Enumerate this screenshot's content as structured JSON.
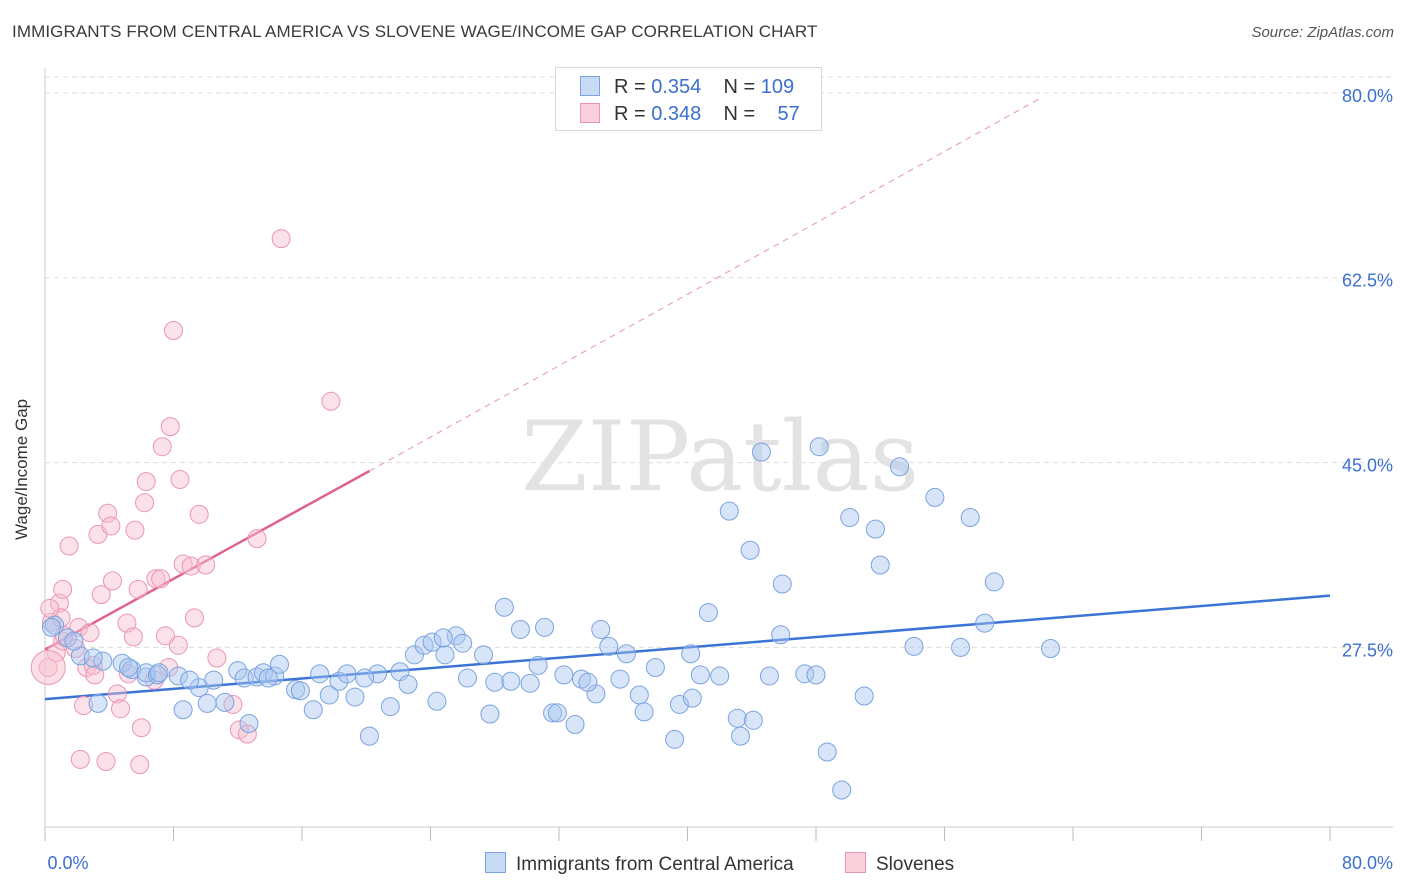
{
  "title": "IMMIGRANTS FROM CENTRAL AMERICA VS SLOVENE WAGE/INCOME GAP CORRELATION CHART",
  "source": "Source: ZipAtlas.com",
  "watermark": "ZIPatlas",
  "legend": {
    "rows": [
      {
        "r_label": "R =",
        "r": "0.354",
        "n_label": "N =",
        "n": "109",
        "color": "#a9c6ef"
      },
      {
        "r_label": "R =",
        "r": "0.348",
        "n_label": "N =",
        "n": "57",
        "color": "#f4b6c8"
      }
    ]
  },
  "bottom_legend": [
    "Immigrants from Central America",
    "Slovenes"
  ],
  "colors": {
    "blue": "#3b74d6",
    "pink": "#e0608f",
    "blue_fill": "#a9c6ef",
    "pink_fill": "#f7bfd0",
    "axis_label": "#3b6fd0"
  },
  "chart_data": {
    "type": "scatter",
    "ylabel": "Wage/Income Gap",
    "x_ticks": [
      "0.0%",
      "80.0%"
    ],
    "y_ticks": [
      "80.0%",
      "62.5%",
      "45.0%",
      "27.5%"
    ],
    "xlim": [
      0,
      80
    ],
    "ylim": [
      10.5,
      81.5
    ],
    "series": [
      {
        "name": "Immigrants from Central America",
        "color": "#3b74d6",
        "trend": {
          "x0": 0,
          "y0": 22.6,
          "x1": 80,
          "y1": 32.4
        },
        "points": [
          [
            0.6,
            29.6
          ],
          [
            1.4,
            28.4
          ],
          [
            2.2,
            26.7
          ],
          [
            3.3,
            22.2
          ],
          [
            3.6,
            26.2
          ],
          [
            4.8,
            26.0
          ],
          [
            5.4,
            25.4
          ],
          [
            6.3,
            24.7
          ],
          [
            6.3,
            25.1
          ],
          [
            7.0,
            24.9
          ],
          [
            7.1,
            25.1
          ],
          [
            8.3,
            24.8
          ],
          [
            8.6,
            21.6
          ],
          [
            9.6,
            23.7
          ],
          [
            10.1,
            22.2
          ],
          [
            10.5,
            24.4
          ],
          [
            11.2,
            22.3
          ],
          [
            12.0,
            25.3
          ],
          [
            12.4,
            24.6
          ],
          [
            12.7,
            20.3
          ],
          [
            13.2,
            24.7
          ],
          [
            13.6,
            25.1
          ],
          [
            14.3,
            24.8
          ],
          [
            14.6,
            25.9
          ],
          [
            15.6,
            23.5
          ],
          [
            15.9,
            23.4
          ],
          [
            16.7,
            21.6
          ],
          [
            17.1,
            25.0
          ],
          [
            17.7,
            23.0
          ],
          [
            18.3,
            24.3
          ],
          [
            18.8,
            25.0
          ],
          [
            19.3,
            22.8
          ],
          [
            20.2,
            19.1
          ],
          [
            20.7,
            25.0
          ],
          [
            21.5,
            21.9
          ],
          [
            22.1,
            25.2
          ],
          [
            22.6,
            24.0
          ],
          [
            23.0,
            26.8
          ],
          [
            23.6,
            27.7
          ],
          [
            24.1,
            28.0
          ],
          [
            24.4,
            22.4
          ],
          [
            24.9,
            26.8
          ],
          [
            25.6,
            28.6
          ],
          [
            26.0,
            27.9
          ],
          [
            26.3,
            24.6
          ],
          [
            27.3,
            26.8
          ],
          [
            27.7,
            21.2
          ],
          [
            28.0,
            24.2
          ],
          [
            28.6,
            31.3
          ],
          [
            29.0,
            24.3
          ],
          [
            29.6,
            29.2
          ],
          [
            30.2,
            24.1
          ],
          [
            30.7,
            25.8
          ],
          [
            31.1,
            29.4
          ],
          [
            31.6,
            21.3
          ],
          [
            31.9,
            21.3
          ],
          [
            32.3,
            24.9
          ],
          [
            33.0,
            20.2
          ],
          [
            33.4,
            24.5
          ],
          [
            34.3,
            23.1
          ],
          [
            34.6,
            29.2
          ],
          [
            35.1,
            27.6
          ],
          [
            35.8,
            24.5
          ],
          [
            36.2,
            26.9
          ],
          [
            37.0,
            23.0
          ],
          [
            37.3,
            21.4
          ],
          [
            38.0,
            25.6
          ],
          [
            39.2,
            18.8
          ],
          [
            39.5,
            22.1
          ],
          [
            40.2,
            26.9
          ],
          [
            40.8,
            24.9
          ],
          [
            41.3,
            30.8
          ],
          [
            42.0,
            24.8
          ],
          [
            42.6,
            40.4
          ],
          [
            43.1,
            20.8
          ],
          [
            43.3,
            19.1
          ],
          [
            43.9,
            36.7
          ],
          [
            44.1,
            20.6
          ],
          [
            44.6,
            46.0
          ],
          [
            45.1,
            24.8
          ],
          [
            45.8,
            28.7
          ],
          [
            45.9,
            33.5
          ],
          [
            47.3,
            25.0
          ],
          [
            48.2,
            46.5
          ],
          [
            48.7,
            17.6
          ],
          [
            49.6,
            14.0
          ],
          [
            50.1,
            39.8
          ],
          [
            51.0,
            22.9
          ],
          [
            51.7,
            38.7
          ],
          [
            52.0,
            35.3
          ],
          [
            53.2,
            44.6
          ],
          [
            54.1,
            27.6
          ],
          [
            55.4,
            41.7
          ],
          [
            57.0,
            27.5
          ],
          [
            57.6,
            39.8
          ],
          [
            58.5,
            29.8
          ],
          [
            59.1,
            33.7
          ],
          [
            62.6,
            27.4
          ],
          [
            0.4,
            29.4
          ],
          [
            1.8,
            28.1
          ],
          [
            3.0,
            26.5
          ],
          [
            5.2,
            25.6
          ],
          [
            9.0,
            24.4
          ],
          [
            13.9,
            24.6
          ],
          [
            19.9,
            24.6
          ],
          [
            24.8,
            28.4
          ],
          [
            33.8,
            24.2
          ],
          [
            40.3,
            22.7
          ],
          [
            48.0,
            24.9
          ]
        ]
      },
      {
        "name": "Slovenes",
        "color": "#e0608f",
        "trend": {
          "x0": 0,
          "y0": 27.3,
          "x1": 20.2,
          "y1": 44.2
        },
        "dashed_trend": {
          "x0": 20.2,
          "y0": 44.2,
          "x1": 62.1,
          "y1": 79.6
        },
        "points": [
          [
            0.2,
            25.6
          ],
          [
            0.4,
            29.9
          ],
          [
            0.7,
            27.0
          ],
          [
            0.9,
            31.7
          ],
          [
            1.0,
            30.3
          ],
          [
            1.1,
            28.1
          ],
          [
            1.1,
            33.0
          ],
          [
            1.5,
            37.1
          ],
          [
            1.9,
            27.4
          ],
          [
            2.1,
            29.4
          ],
          [
            2.2,
            16.9
          ],
          [
            2.4,
            22.0
          ],
          [
            2.6,
            25.6
          ],
          [
            2.8,
            28.9
          ],
          [
            3.0,
            25.8
          ],
          [
            3.1,
            24.9
          ],
          [
            3.3,
            38.2
          ],
          [
            3.5,
            32.5
          ],
          [
            3.8,
            16.7
          ],
          [
            3.9,
            40.2
          ],
          [
            4.1,
            39.0
          ],
          [
            4.2,
            33.8
          ],
          [
            4.5,
            23.1
          ],
          [
            4.7,
            21.7
          ],
          [
            5.1,
            29.8
          ],
          [
            5.2,
            25.0
          ],
          [
            5.5,
            28.5
          ],
          [
            5.8,
            33.0
          ],
          [
            5.9,
            16.4
          ],
          [
            6.0,
            19.9
          ],
          [
            6.2,
            41.2
          ],
          [
            6.3,
            43.2
          ],
          [
            6.8,
            24.4
          ],
          [
            6.9,
            34.0
          ],
          [
            7.2,
            34.0
          ],
          [
            7.3,
            46.5
          ],
          [
            7.5,
            28.6
          ],
          [
            7.7,
            25.6
          ],
          [
            7.8,
            48.4
          ],
          [
            8.0,
            57.5
          ],
          [
            8.3,
            27.7
          ],
          [
            8.4,
            43.4
          ],
          [
            8.6,
            35.4
          ],
          [
            9.1,
            35.2
          ],
          [
            9.3,
            30.3
          ],
          [
            9.6,
            40.1
          ],
          [
            10.0,
            35.3
          ],
          [
            10.7,
            26.5
          ],
          [
            11.7,
            22.1
          ],
          [
            12.1,
            19.7
          ],
          [
            12.6,
            19.3
          ],
          [
            13.2,
            37.8
          ],
          [
            14.7,
            66.2
          ],
          [
            17.8,
            50.8
          ],
          [
            0.3,
            31.2
          ],
          [
            1.2,
            28.6
          ],
          [
            5.6,
            38.6
          ]
        ]
      }
    ]
  }
}
